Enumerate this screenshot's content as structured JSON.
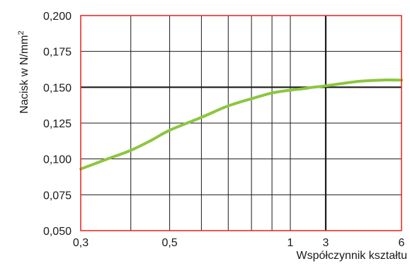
{
  "chart_data": {
    "type": "line",
    "title": "",
    "xlabel": "Współczynnik kształtu",
    "ylabel": {
      "text": "Nacisk w N/mm",
      "superscript": "2"
    },
    "x_ticks": [
      "0,3",
      "0,5",
      "1",
      "3",
      "6"
    ],
    "y_ticks": [
      "0,050",
      "0,075",
      "0,100",
      "0,125",
      "0,150",
      "0,175",
      "0,200"
    ],
    "x_scale": "piecewise-log",
    "x_segments": [
      {
        "from": 0.3,
        "to": 1
      },
      {
        "from": 1,
        "to": 3
      },
      {
        "from": 3,
        "to": 6
      }
    ],
    "ylim": [
      0.05,
      0.2
    ],
    "grid": true,
    "highlight_lines": {
      "x": 3,
      "y": 0.15
    },
    "series": [
      {
        "x": [
          0.3,
          0.35,
          0.4,
          0.45,
          0.5,
          0.6,
          0.7,
          0.8,
          0.9,
          1,
          1.5,
          2,
          3,
          4,
          5,
          6
        ],
        "y": [
          0.093,
          0.1,
          0.106,
          0.113,
          0.12,
          0.129,
          0.137,
          0.142,
          0.146,
          0.148,
          0.149,
          0.15,
          0.151,
          0.154,
          0.155,
          0.155
        ]
      }
    ],
    "colors": {
      "series": "#8cc63f",
      "frame": "#e8211b",
      "grid": "#1a1a1a",
      "text": "#1a1a1a"
    }
  }
}
